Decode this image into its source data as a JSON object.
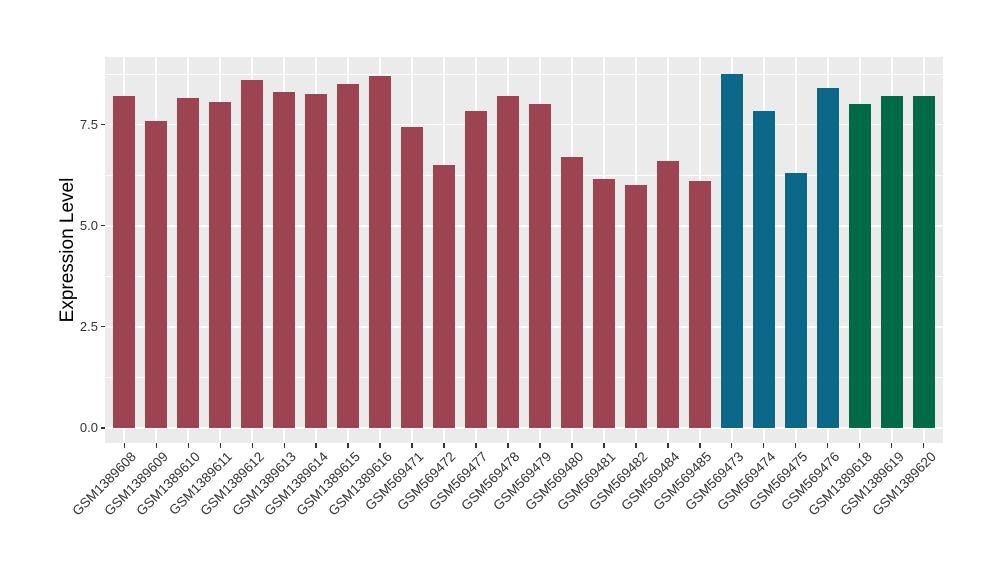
{
  "chart_data": {
    "type": "bar",
    "title": "",
    "xlabel": "",
    "ylabel": "Expression Level",
    "ylim": [
      -0.37,
      9.18
    ],
    "yticks": {
      "values": [
        0,
        2.5,
        5,
        7.5
      ],
      "labels": [
        "0.0",
        "2.5",
        "5.0",
        "7.5"
      ]
    },
    "yticks_minor": [
      1.25,
      3.75,
      6.25,
      8.75
    ],
    "legend_position": "none",
    "panel_background": "#EBEBEB",
    "grid_color": "#FFFFFF",
    "tick_color": "#333333",
    "tick_label_color": "#333333",
    "axis_title_color": "#000000",
    "palette": {
      "maroon": "#9D4452",
      "teal": "#0C6789",
      "green": "#016A46"
    },
    "bars": [
      {
        "label": "GSM1389608",
        "value": 8.2,
        "color": "maroon"
      },
      {
        "label": "GSM1389609",
        "value": 7.6,
        "color": "maroon"
      },
      {
        "label": "GSM1389610",
        "value": 8.15,
        "color": "maroon"
      },
      {
        "label": "GSM1389611",
        "value": 8.05,
        "color": "maroon"
      },
      {
        "label": "GSM1389612",
        "value": 8.6,
        "color": "maroon"
      },
      {
        "label": "GSM1389613",
        "value": 8.3,
        "color": "maroon"
      },
      {
        "label": "GSM1389614",
        "value": 8.25,
        "color": "maroon"
      },
      {
        "label": "GSM1389615",
        "value": 8.5,
        "color": "maroon"
      },
      {
        "label": "GSM1389616",
        "value": 8.7,
        "color": "maroon"
      },
      {
        "label": "GSM569471",
        "value": 7.45,
        "color": "maroon"
      },
      {
        "label": "GSM569472",
        "value": 6.5,
        "color": "maroon"
      },
      {
        "label": "GSM569477",
        "value": 7.85,
        "color": "maroon"
      },
      {
        "label": "GSM569478",
        "value": 8.2,
        "color": "maroon"
      },
      {
        "label": "GSM569479",
        "value": 8.0,
        "color": "maroon"
      },
      {
        "label": "GSM569480",
        "value": 6.7,
        "color": "maroon"
      },
      {
        "label": "GSM569481",
        "value": 6.15,
        "color": "maroon"
      },
      {
        "label": "GSM569482",
        "value": 6.0,
        "color": "maroon"
      },
      {
        "label": "GSM569484",
        "value": 6.6,
        "color": "maroon"
      },
      {
        "label": "GSM569485",
        "value": 6.1,
        "color": "maroon"
      },
      {
        "label": "GSM569473",
        "value": 8.75,
        "color": "teal"
      },
      {
        "label": "GSM569474",
        "value": 7.85,
        "color": "teal"
      },
      {
        "label": "GSM569475",
        "value": 6.3,
        "color": "teal"
      },
      {
        "label": "GSM569476",
        "value": 8.4,
        "color": "teal"
      },
      {
        "label": "GSM1389618",
        "value": 8.0,
        "color": "green"
      },
      {
        "label": "GSM1389619",
        "value": 8.2,
        "color": "green"
      },
      {
        "label": "GSM1389620",
        "value": 8.2,
        "color": "green"
      }
    ]
  }
}
